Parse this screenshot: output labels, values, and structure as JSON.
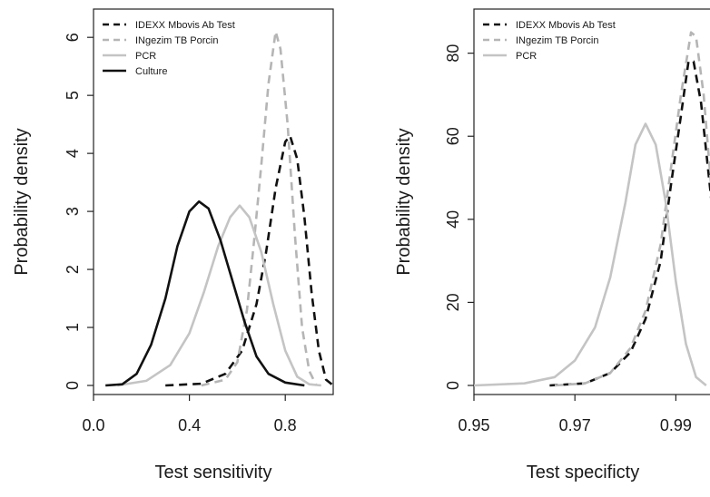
{
  "chart_data": [
    {
      "type": "line",
      "xlabel": "Test sensitivity",
      "ylabel": "Probability density",
      "xlim": [
        0.0,
        1.0
      ],
      "ylim": [
        0,
        6.3
      ],
      "xticks": [
        "0.0",
        "0.4",
        "0.8"
      ],
      "yticks": [
        "0",
        "1",
        "2",
        "3",
        "4",
        "5",
        "6"
      ],
      "legend_position": "top-left",
      "series": [
        {
          "name": "IDEXX Mbovis Ab Test",
          "color": "#111111",
          "dash": "dashed",
          "points": [
            [
              0.3,
              0
            ],
            [
              0.45,
              0.03
            ],
            [
              0.55,
              0.2
            ],
            [
              0.62,
              0.6
            ],
            [
              0.68,
              1.4
            ],
            [
              0.72,
              2.3
            ],
            [
              0.76,
              3.4
            ],
            [
              0.8,
              4.2
            ],
            [
              0.82,
              4.3
            ],
            [
              0.85,
              3.9
            ],
            [
              0.88,
              2.9
            ],
            [
              0.91,
              1.6
            ],
            [
              0.94,
              0.6
            ],
            [
              0.97,
              0.1
            ],
            [
              1.0,
              0
            ]
          ]
        },
        {
          "name": "INgezim TB Porcin",
          "color": "#b5b5b5",
          "dash": "dashed",
          "points": [
            [
              0.45,
              0
            ],
            [
              0.55,
              0.1
            ],
            [
              0.6,
              0.4
            ],
            [
              0.64,
              1.3
            ],
            [
              0.67,
              2.5
            ],
            [
              0.7,
              3.8
            ],
            [
              0.73,
              5.2
            ],
            [
              0.76,
              6.1
            ],
            [
              0.78,
              5.8
            ],
            [
              0.81,
              4.5
            ],
            [
              0.84,
              2.6
            ],
            [
              0.87,
              1.0
            ],
            [
              0.9,
              0.25
            ],
            [
              0.93,
              0
            ]
          ]
        },
        {
          "name": "PCR",
          "color": "#c4c4c4",
          "dash": "solid",
          "points": [
            [
              0.1,
              0
            ],
            [
              0.22,
              0.08
            ],
            [
              0.32,
              0.35
            ],
            [
              0.4,
              0.9
            ],
            [
              0.46,
              1.6
            ],
            [
              0.52,
              2.4
            ],
            [
              0.57,
              2.9
            ],
            [
              0.61,
              3.1
            ],
            [
              0.65,
              2.9
            ],
            [
              0.7,
              2.3
            ],
            [
              0.75,
              1.4
            ],
            [
              0.8,
              0.6
            ],
            [
              0.85,
              0.15
            ],
            [
              0.9,
              0.02
            ],
            [
              0.95,
              0
            ]
          ]
        },
        {
          "name": "Culture",
          "color": "#111111",
          "dash": "solid",
          "points": [
            [
              0.05,
              0
            ],
            [
              0.12,
              0.02
            ],
            [
              0.18,
              0.2
            ],
            [
              0.24,
              0.7
            ],
            [
              0.3,
              1.5
            ],
            [
              0.35,
              2.4
            ],
            [
              0.4,
              3.0
            ],
            [
              0.44,
              3.17
            ],
            [
              0.48,
              3.05
            ],
            [
              0.53,
              2.5
            ],
            [
              0.58,
              1.8
            ],
            [
              0.63,
              1.1
            ],
            [
              0.68,
              0.5
            ],
            [
              0.73,
              0.2
            ],
            [
              0.8,
              0.05
            ],
            [
              0.88,
              0
            ]
          ]
        }
      ]
    },
    {
      "type": "line",
      "xlabel": "Test specificty",
      "ylabel": "Probability density",
      "xlim": [
        0.95,
        1.0
      ],
      "ylim": [
        0,
        88
      ],
      "xticks": [
        "0.95",
        "0.97",
        "0.99"
      ],
      "yticks": [
        "0",
        "20",
        "40",
        "60",
        "80"
      ],
      "legend_position": "top-left",
      "series": [
        {
          "name": "IDEXX Mbovis Ab Test",
          "color": "#111111",
          "dash": "dashed",
          "points": [
            [
              0.965,
              0
            ],
            [
              0.972,
              0.5
            ],
            [
              0.977,
              3
            ],
            [
              0.981,
              8
            ],
            [
              0.984,
              16
            ],
            [
              0.987,
              30
            ],
            [
              0.989,
              48
            ],
            [
              0.991,
              65
            ],
            [
              0.9925,
              78
            ],
            [
              0.9935,
              78
            ],
            [
              0.995,
              68
            ],
            [
              0.997,
              45
            ],
            [
              0.998,
              28
            ],
            [
              0.999,
              12
            ],
            [
              1.0,
              2
            ]
          ]
        },
        {
          "name": "INgezim TB Porcin",
          "color": "#b5b5b5",
          "dash": "dashed",
          "points": [
            [
              0.966,
              0
            ],
            [
              0.972,
              0.5
            ],
            [
              0.977,
              3
            ],
            [
              0.981,
              9
            ],
            [
              0.984,
              18
            ],
            [
              0.987,
              34
            ],
            [
              0.989,
              52
            ],
            [
              0.991,
              70
            ],
            [
              0.993,
              85
            ],
            [
              0.994,
              84
            ],
            [
              0.9955,
              70
            ],
            [
              0.997,
              48
            ],
            [
              0.9985,
              22
            ],
            [
              1.0,
              3
            ]
          ]
        },
        {
          "name": "PCR",
          "color": "#c4c4c4",
          "dash": "solid",
          "points": [
            [
              0.95,
              0
            ],
            [
              0.96,
              0.5
            ],
            [
              0.966,
              2
            ],
            [
              0.97,
              6
            ],
            [
              0.974,
              14
            ],
            [
              0.977,
              26
            ],
            [
              0.98,
              44
            ],
            [
              0.982,
              58
            ],
            [
              0.984,
              63
            ],
            [
              0.986,
              58
            ],
            [
              0.988,
              44
            ],
            [
              0.99,
              25
            ],
            [
              0.992,
              10
            ],
            [
              0.994,
              2
            ],
            [
              0.996,
              0
            ]
          ]
        }
      ]
    }
  ]
}
